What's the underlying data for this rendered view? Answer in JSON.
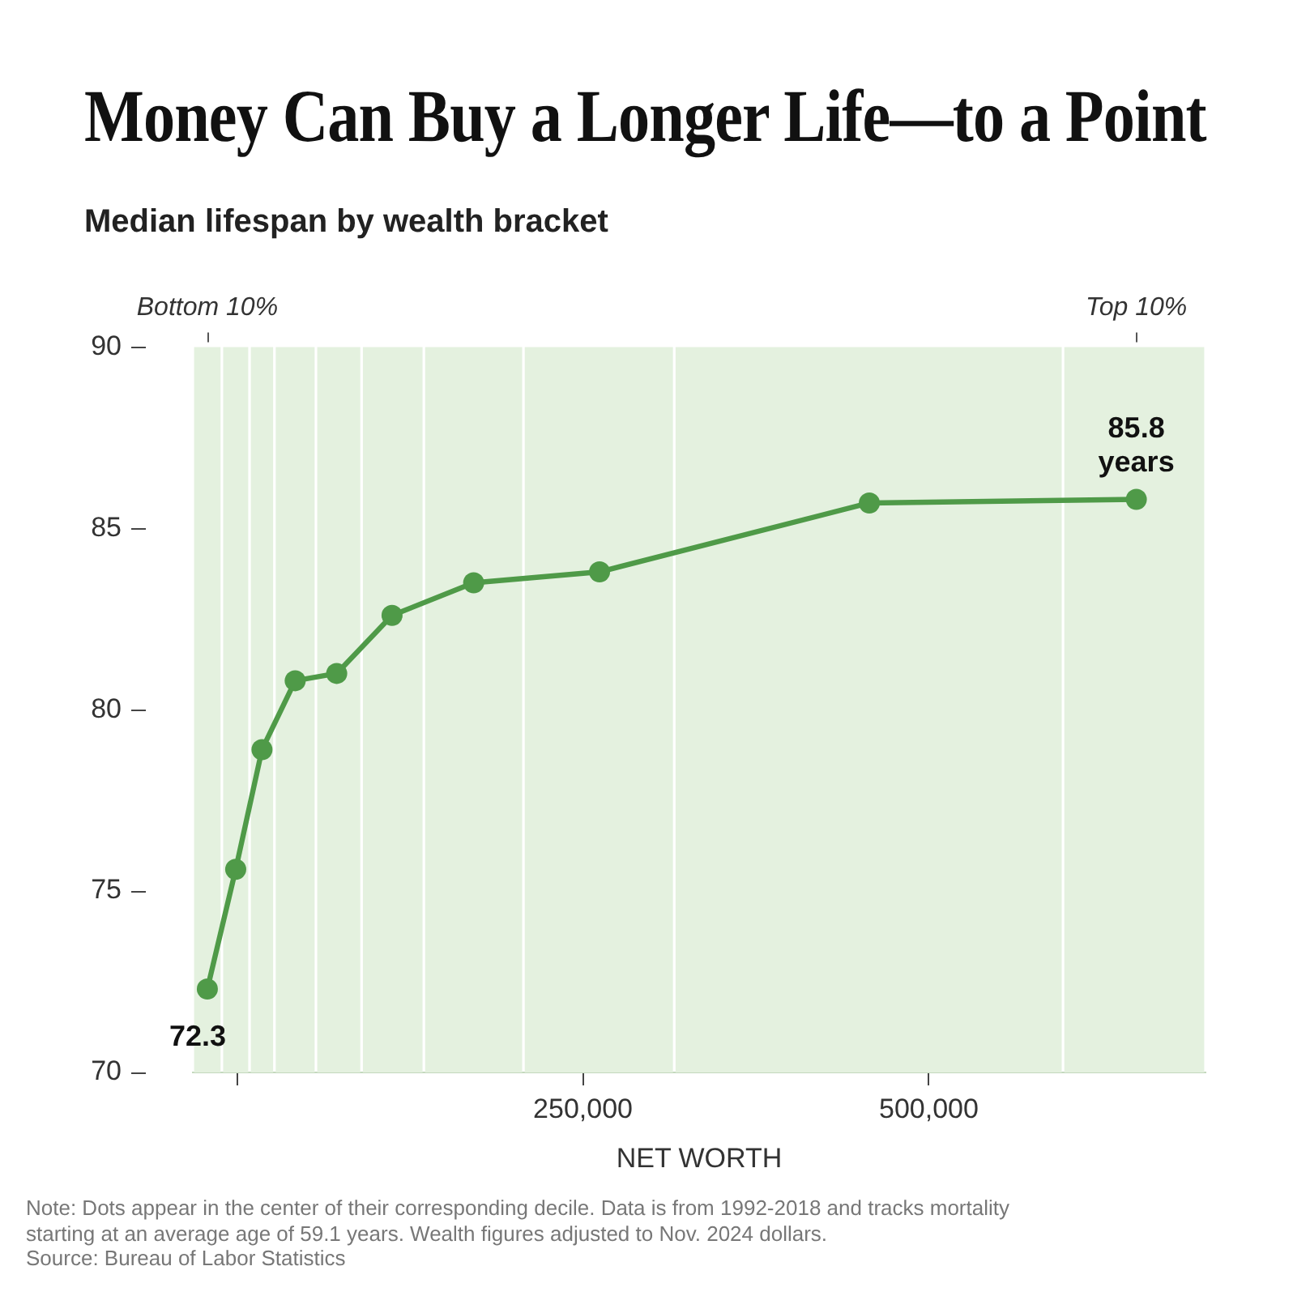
{
  "chart_data": {
    "type": "line",
    "title": "Money Can Buy a Longer Life—to a Point",
    "subtitle": "Median lifespan by wealth bracket",
    "xlabel": "NET WORTH",
    "x": [
      -21500,
      -1000,
      18000,
      42000,
      72000,
      112000,
      171000,
      262000,
      457000,
      650000
    ],
    "series": [
      {
        "color": "#4f9a48",
        "values": [
          72.3,
          75.6,
          78.9,
          80.8,
          81.0,
          82.6,
          83.5,
          83.8,
          85.7,
          85.8
        ],
        "value_labels": [
          "72.3",
          null,
          null,
          null,
          null,
          null,
          null,
          null,
          null,
          "85.8\nyears"
        ]
      }
    ],
    "marker": "circle",
    "line_style": "solid",
    "xlim": [
      -32000,
      700000
    ],
    "xticks": [
      {
        "value": 0,
        "label": null
      },
      {
        "value": 250000,
        "label": "250,000"
      },
      {
        "value": 500000,
        "label": "500,000"
      }
    ],
    "ylim": [
      70,
      90
    ],
    "yticks": [
      70,
      75,
      80,
      85,
      90
    ],
    "bands": [
      {
        "axis": "x",
        "from": -32000,
        "to": -11000,
        "color": "#e4f1df"
      },
      {
        "axis": "x",
        "from": -11000,
        "to": 9000,
        "color": "#e4f1df"
      },
      {
        "axis": "x",
        "from": 9000,
        "to": 27000,
        "color": "#e4f1df"
      },
      {
        "axis": "x",
        "from": 27000,
        "to": 57000,
        "color": "#e4f1df"
      },
      {
        "axis": "x",
        "from": 57000,
        "to": 90000,
        "color": "#e4f1df"
      },
      {
        "axis": "x",
        "from": 90000,
        "to": 135000,
        "color": "#e4f1df"
      },
      {
        "axis": "x",
        "from": 135000,
        "to": 207000,
        "color": "#e4f1df"
      },
      {
        "axis": "x",
        "from": 207000,
        "to": 316000,
        "color": "#e4f1df"
      },
      {
        "axis": "x",
        "from": 316000,
        "to": 597000,
        "color": "#e4f1df"
      },
      {
        "axis": "x",
        "from": 597000,
        "to": 700000,
        "color": "#e4f1df"
      }
    ],
    "annotations": [
      {
        "text": "Bottom 10%",
        "x": -21500
      },
      {
        "text": "Top 10%",
        "x": 650000
      },
      "Note: Dots appear in the center of their corresponding decile. Data is from 1992-2018 and tracks mortality starting at an average age of 59.1 years. Wealth figures adjusted to Nov. 2024 dollars.",
      "Source: Bureau of Labor Statistics"
    ]
  }
}
